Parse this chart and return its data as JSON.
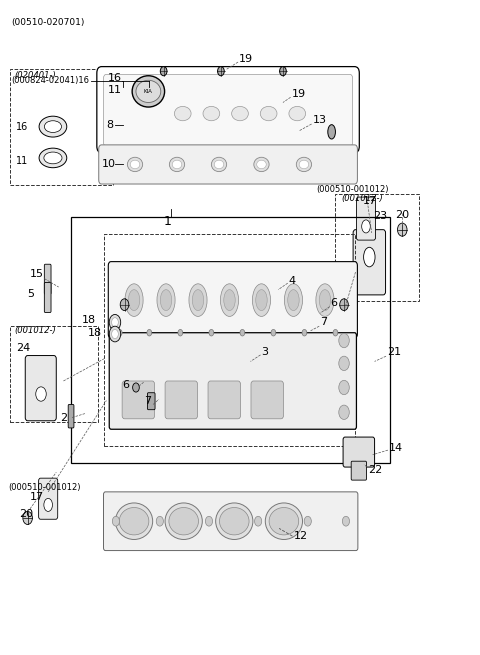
{
  "bg_color": "#ffffff",
  "fig_width": 4.8,
  "fig_height": 6.55,
  "dpi": 100,
  "top_label": "(00510-020701)",
  "label_000824": "(000824-02041)16",
  "label_020401": "(020401-)",
  "label_001012_r": "(001012-)",
  "label_001012_l": "(001012-)",
  "label_000510_r": "(000510-001012)",
  "label_000510_l": "(000510-001012)",
  "line_color": "#000000",
  "dash_color": "#555555",
  "text_color": "#000000",
  "font_size_large": 8,
  "font_size_small": 7,
  "font_size_tiny": 6
}
